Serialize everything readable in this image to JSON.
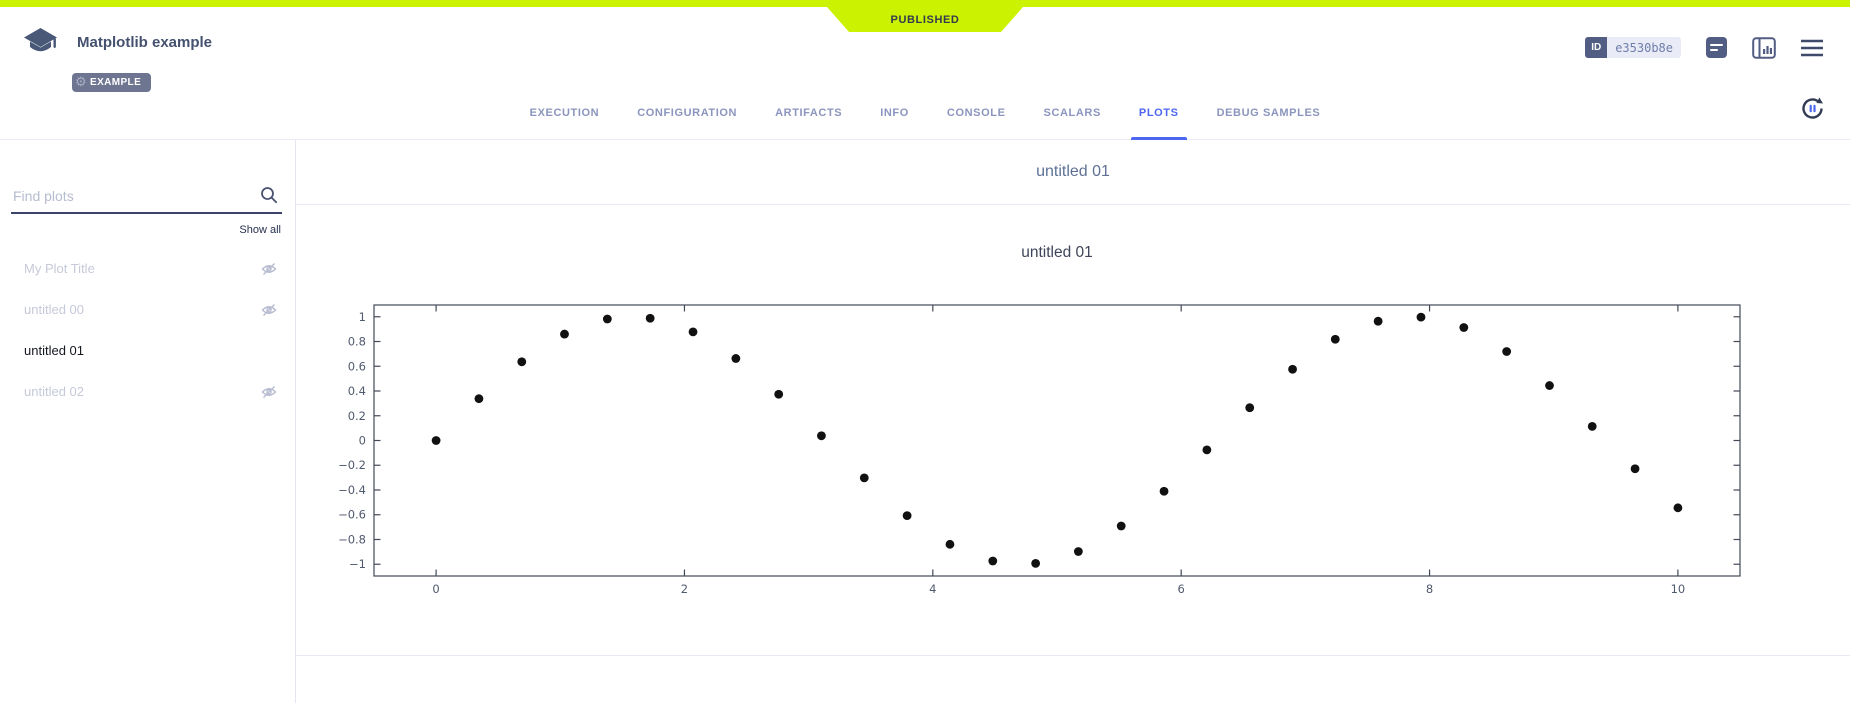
{
  "header": {
    "status_ribbon": "PUBLISHED",
    "title": "Matplotlib example",
    "tag": "EXAMPLE",
    "id_label": "ID",
    "id_value": "e3530b8e",
    "colors": {
      "published_lime": "#cbf201",
      "accent_blue": "#4d66f0",
      "dark_slate": "#44516f"
    }
  },
  "tabs": {
    "items": [
      "EXECUTION",
      "CONFIGURATION",
      "ARTIFACTS",
      "INFO",
      "CONSOLE",
      "SCALARS",
      "PLOTS",
      "DEBUG SAMPLES"
    ],
    "active": "PLOTS"
  },
  "sidebar": {
    "search_placeholder": "Find plots",
    "show_all": "Show all",
    "plots": [
      {
        "name": "My Plot Title",
        "hidden": true
      },
      {
        "name": "untitled 00",
        "hidden": true
      },
      {
        "name": "untitled 01",
        "hidden": false,
        "selected": true
      },
      {
        "name": "untitled 02",
        "hidden": true
      }
    ]
  },
  "main": {
    "group_title": "untitled 01"
  },
  "chart_data": {
    "type": "scatter",
    "title": "untitled 01",
    "xlabel": "",
    "ylabel": "",
    "xlim": [
      -0.5,
      10.5
    ],
    "ylim": [
      -1.095,
      1.095
    ],
    "xticks": [
      0,
      2,
      4,
      6,
      8,
      10
    ],
    "yticks": [
      -1,
      -0.8,
      -0.6,
      -0.4,
      -0.2,
      0,
      0.2,
      0.4,
      0.6,
      0.8,
      1
    ],
    "grid": false,
    "legend": false,
    "marker_color": "#111111",
    "x": [
      0.0,
      0.345,
      0.69,
      1.034,
      1.379,
      1.724,
      2.069,
      2.414,
      2.759,
      3.103,
      3.448,
      3.793,
      4.138,
      4.483,
      4.828,
      5.172,
      5.517,
      5.862,
      6.207,
      6.552,
      6.897,
      7.241,
      7.586,
      7.931,
      8.276,
      8.621,
      8.966,
      9.31,
      9.655,
      10.0
    ],
    "y": [
      0.0,
      0.338,
      0.636,
      0.86,
      0.982,
      0.988,
      0.878,
      0.663,
      0.374,
      0.038,
      -0.302,
      -0.607,
      -0.839,
      -0.974,
      -0.993,
      -0.897,
      -0.691,
      -0.41,
      -0.076,
      0.265,
      0.576,
      0.818,
      0.964,
      0.997,
      0.913,
      0.719,
      0.444,
      0.114,
      -0.228,
      -0.544
    ]
  }
}
